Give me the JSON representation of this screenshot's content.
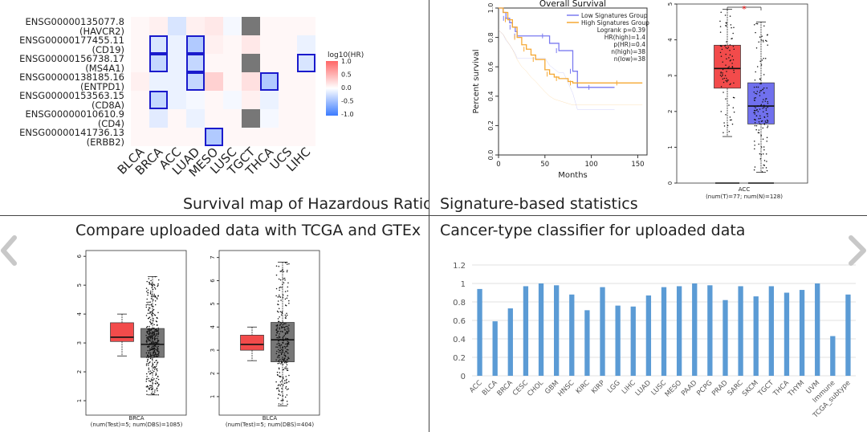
{
  "captions": {
    "heatmap": "Survival map of Hazardous Ratio",
    "survival": "Signature-based statistics",
    "compare": "Compare uploaded data with TCGA and GTEx",
    "classifier": "Cancer-type classifier for uploaded data"
  },
  "colors": {
    "low": "#3b7bff",
    "high": "#ff6666",
    "mid": "#ffffff",
    "gray": "#777777",
    "box_red": "#f24b4b",
    "box_blue": "#7070ee",
    "box_gray": "#777777",
    "bar": "#5b9bd5",
    "km_low": "#7b7bf0",
    "km_high": "#f5a833"
  },
  "chart_data": [
    {
      "type": "heatmap",
      "title": "Survival map of Hazardous Ratio",
      "rows": [
        {
          "id": "ENSG00000135077.8",
          "gene": "(HAVCR2)"
        },
        {
          "id": "ENSG00000177455.11",
          "gene": "(CD19)"
        },
        {
          "id": "ENSG00000156738.17",
          "gene": "(MS4A1)"
        },
        {
          "id": "ENSG00000138185.16",
          "gene": "(ENTPD1)"
        },
        {
          "id": "ENSG00000153563.15",
          "gene": "(CD8A)"
        },
        {
          "id": "ENSG00000010610.9",
          "gene": "(CD4)"
        },
        {
          "id": "ENSG00000141736.13",
          "gene": "(ERBB2)"
        }
      ],
      "columns": [
        "BLCA",
        "BRCA",
        "ACC",
        "LUAD",
        "MESO",
        "LUSC",
        "TGCT",
        "THCA",
        "UCS",
        "LIHC"
      ],
      "values": [
        [
          0.05,
          0.1,
          -0.2,
          0.1,
          0.15,
          -0.05,
          null,
          0.05,
          0.05,
          0.05
        ],
        [
          0.05,
          -0.2,
          -0.1,
          -0.4,
          0.1,
          0.05,
          0.15,
          0.05,
          0.05,
          -0.1
        ],
        [
          0.05,
          -0.3,
          -0.1,
          -0.3,
          0.05,
          0.05,
          null,
          0.05,
          0.05,
          -0.2
        ],
        [
          0.1,
          -0.1,
          -0.1,
          -0.3,
          0.3,
          0.05,
          0.2,
          -0.4,
          0.05,
          0.05
        ],
        [
          0.05,
          -0.3,
          -0.1,
          -0.05,
          0.05,
          -0.05,
          0.1,
          -0.1,
          0.05,
          0.05
        ],
        [
          0.05,
          -0.15,
          0.05,
          -0.1,
          0.05,
          0.05,
          null,
          -0.05,
          0.05,
          0.05
        ],
        [
          0.05,
          0.05,
          0.05,
          0.05,
          -0.4,
          0.05,
          0.05,
          0.05,
          0.05,
          0.05
        ]
      ],
      "highlighted": [
        [
          1,
          1
        ],
        [
          1,
          3
        ],
        [
          2,
          1
        ],
        [
          2,
          3
        ],
        [
          2,
          9
        ],
        [
          3,
          3
        ],
        [
          3,
          7
        ],
        [
          4,
          1
        ],
        [
          6,
          4
        ]
      ],
      "legend": {
        "title": "log10(HR)",
        "ticks": [
          "1.0",
          "0.5",
          "0.0",
          "-0.5",
          "-1.0"
        ],
        "range": [
          -1.0,
          1.0
        ]
      }
    },
    {
      "type": "line",
      "title": "Overall Survival",
      "xlabel": "Months",
      "ylabel": "Percent survival",
      "xlim": [
        0,
        160
      ],
      "ylim": [
        0,
        1.0
      ],
      "xticks": [
        "0",
        "50",
        "100",
        "150"
      ],
      "yticks": [
        "0.0",
        "0.2",
        "0.4",
        "0.6",
        "0.8",
        "1.0"
      ],
      "legend": [
        "Low Signatures Group",
        "High Signatures Group"
      ],
      "stats": [
        "Logrank p=0.39",
        "HR(high)=1.4",
        "p(HR)=0.4",
        "n(high)=38",
        "n(low)=38"
      ],
      "series": [
        {
          "name": "Low Signatures Group",
          "x": [
            0,
            5,
            8,
            12,
            15,
            18,
            20,
            25,
            50,
            55,
            65,
            70,
            80,
            85,
            100,
            125
          ],
          "y": [
            1.0,
            0.97,
            0.93,
            0.9,
            0.87,
            0.84,
            0.81,
            0.81,
            0.81,
            0.76,
            0.71,
            0.71,
            0.57,
            0.46,
            0.46,
            0.46
          ]
        },
        {
          "name": "High Signatures Group",
          "x": [
            0,
            5,
            10,
            15,
            20,
            25,
            30,
            35,
            40,
            50,
            55,
            60,
            65,
            75,
            80,
            100,
            130,
            155
          ],
          "y": [
            1.0,
            0.97,
            0.92,
            0.87,
            0.8,
            0.75,
            0.72,
            0.68,
            0.65,
            0.58,
            0.55,
            0.53,
            0.52,
            0.5,
            0.49,
            0.49,
            0.49,
            0.49
          ]
        }
      ]
    },
    {
      "type": "box",
      "title": "",
      "xlabel": "ACC",
      "xlabel_note": "(num(T)=77; num(N)=128)",
      "ylim": [
        0,
        5
      ],
      "yticks": [
        "0",
        "1",
        "2",
        "3",
        "4",
        "5"
      ],
      "significance": "*",
      "boxes": [
        {
          "name": "T",
          "min": 1.3,
          "q1": 2.65,
          "median": 3.2,
          "q3": 3.85,
          "max": 4.85
        },
        {
          "name": "N",
          "min": 0.3,
          "q1": 1.65,
          "median": 2.15,
          "q3": 2.8,
          "max": 4.5
        }
      ]
    },
    {
      "type": "box",
      "title": "",
      "xlabel": "BRCA",
      "xlabel_note": "(num(Test)=5; num(DBS)=1085)",
      "ylim": [
        0.5,
        6.2
      ],
      "yticks": [
        "1",
        "2",
        "3",
        "4",
        "5",
        "6"
      ],
      "boxes": [
        {
          "name": "Test",
          "min": 2.55,
          "q1": 3.05,
          "median": 3.2,
          "q3": 3.7,
          "max": 4.0
        },
        {
          "name": "DBS",
          "min": 1.2,
          "q1": 2.5,
          "median": 2.95,
          "q3": 3.5,
          "max": 5.3
        }
      ]
    },
    {
      "type": "box",
      "title": "",
      "xlabel": "BLCA",
      "xlabel_note": "(num(Test)=5; num(DBS)=404)",
      "ylim": [
        0.2,
        7.3
      ],
      "yticks": [
        "1",
        "2",
        "3",
        "4",
        "5",
        "6",
        "7"
      ],
      "boxes": [
        {
          "name": "Test",
          "min": 2.55,
          "q1": 3.0,
          "median": 3.25,
          "q3": 3.65,
          "max": 4.0
        },
        {
          "name": "DBS",
          "min": 0.6,
          "q1": 2.5,
          "median": 3.45,
          "q3": 4.2,
          "max": 6.8
        }
      ]
    },
    {
      "type": "bar",
      "title": "",
      "categories": [
        "ACC",
        "BLCA",
        "BRCA",
        "CESC",
        "CHOL",
        "GBM",
        "HNSC",
        "KIRC",
        "KIRP",
        "LGG",
        "LIHC",
        "LUAD",
        "LUSC",
        "MESO",
        "PAAD",
        "PCPG",
        "PRAD",
        "SARC",
        "SKCM",
        "TGCT",
        "THCA",
        "THYM",
        "UVM",
        "Immune",
        "TCGA_subtype"
      ],
      "values": [
        0.94,
        0.59,
        0.73,
        0.97,
        1.0,
        0.98,
        0.88,
        0.71,
        0.96,
        0.76,
        0.75,
        0.87,
        0.96,
        0.97,
        1.0,
        0.98,
        0.82,
        0.97,
        0.86,
        0.97,
        0.9,
        0.93,
        1.0,
        0.43,
        0.88
      ],
      "ylim": [
        0,
        1.2
      ],
      "yticks": [
        "0",
        "0.2",
        "0.4",
        "0.6",
        "0.8",
        "1",
        "1.2"
      ]
    }
  ]
}
